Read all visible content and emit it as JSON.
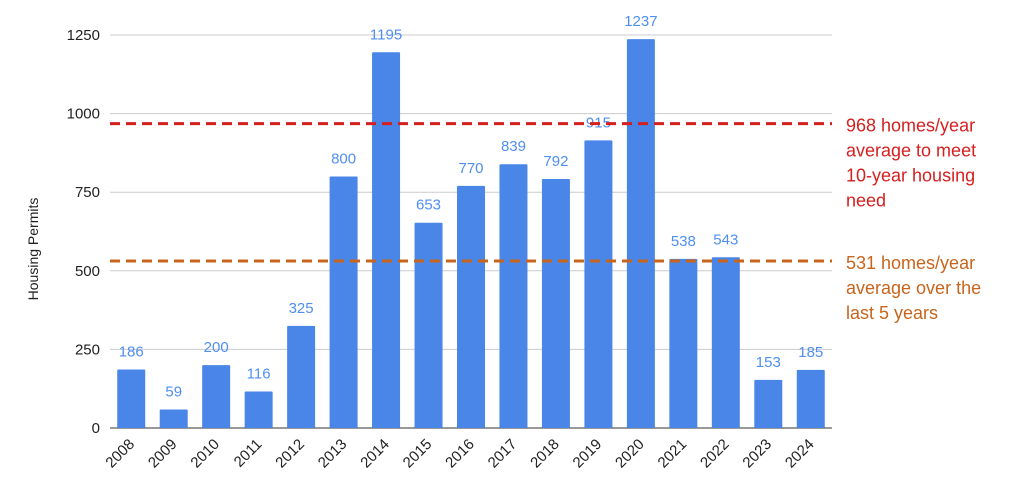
{
  "chart_data": {
    "type": "bar",
    "ylabel": "Housing Permits",
    "ylim": [
      0,
      1250
    ],
    "yticks": [
      0,
      250,
      500,
      750,
      1000,
      1250
    ],
    "grid": true,
    "categories": [
      "2008",
      "2009",
      "2010",
      "2011",
      "2012",
      "2013",
      "2014",
      "2015",
      "2016",
      "2017",
      "2018",
      "2019",
      "2020",
      "2021",
      "2022",
      "2023",
      "2024"
    ],
    "values": [
      186,
      59,
      200,
      116,
      325,
      800,
      1195,
      653,
      770,
      839,
      792,
      915,
      1237,
      538,
      543,
      153,
      185
    ],
    "bar_color": "#4a86e8",
    "label_color": "#4f8ff0",
    "reference_lines": [
      {
        "value": 968,
        "color": "#d61f1f",
        "style": "dashed",
        "lines": [
          "968 homes/year",
          "average to meet",
          "10-year housing",
          "need"
        ]
      },
      {
        "value": 531,
        "color": "#c8651c",
        "style": "dashed",
        "lines": [
          "531 homes/year",
          "average over the",
          "last 5 years"
        ]
      }
    ]
  }
}
